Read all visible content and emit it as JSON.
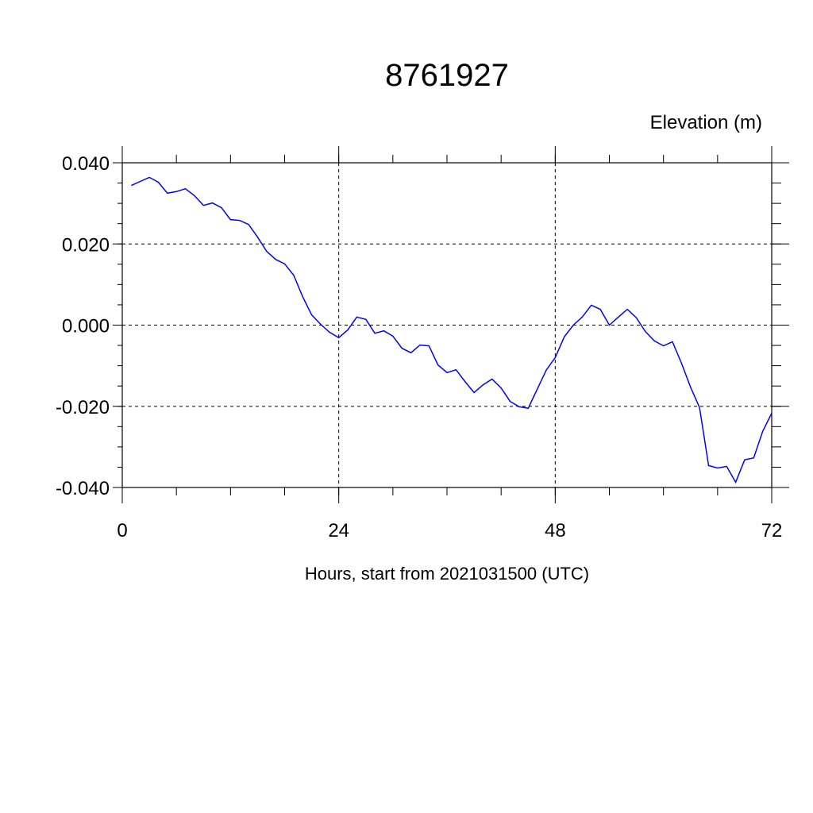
{
  "chart_data": {
    "type": "line",
    "title": "8761927",
    "ylabel": "Elevation (m)",
    "xlabel": "Hours, start from 2021031500 (UTC)",
    "xlim": [
      0,
      72
    ],
    "ylim": [
      -0.04,
      0.04
    ],
    "xticks": [
      0,
      24,
      48,
      72
    ],
    "xtick_labels": [
      "0",
      "24",
      "48",
      "72"
    ],
    "yticks": [
      0.04,
      0.02,
      0.0,
      -0.02,
      -0.04
    ],
    "ytick_labels": [
      "0.040",
      "0.020",
      "0.000",
      "-0.020",
      "-0.040"
    ],
    "grid": true,
    "line_color": "#0000ff",
    "series": [
      {
        "name": "Elevation",
        "x": [
          1,
          2,
          3,
          4,
          5,
          6,
          7,
          8,
          9,
          10,
          11,
          12,
          13,
          14,
          15,
          16,
          17,
          18,
          19,
          20,
          21,
          22,
          23,
          24,
          25,
          26,
          27,
          28,
          29,
          30,
          31,
          32,
          33,
          34,
          35,
          36,
          37,
          38,
          39,
          40,
          41,
          42,
          43,
          44,
          45,
          46,
          47,
          48,
          49,
          50,
          51,
          52,
          53,
          54,
          55,
          56,
          57,
          58,
          59,
          60,
          61,
          62,
          63,
          64,
          65,
          66,
          67,
          68,
          69,
          70,
          71,
          72
        ],
        "values": [
          0.0344,
          0.0354,
          0.0364,
          0.0352,
          0.0325,
          0.0329,
          0.0336,
          0.0319,
          0.0295,
          0.0301,
          0.0289,
          0.026,
          0.0258,
          0.0248,
          0.0217,
          0.0182,
          0.0162,
          0.0151,
          0.0123,
          0.007,
          0.0025,
          0.0002,
          -0.0018,
          -0.0031,
          -0.0012,
          0.002,
          0.0014,
          -0.002,
          -0.0014,
          -0.0027,
          -0.0057,
          -0.0068,
          -0.0049,
          -0.0051,
          -0.0098,
          -0.0117,
          -0.011,
          -0.0139,
          -0.0166,
          -0.0147,
          -0.0133,
          -0.0155,
          -0.0188,
          -0.0201,
          -0.0205,
          -0.0158,
          -0.0111,
          -0.008,
          -0.0029,
          0.0,
          0.002,
          0.0049,
          0.0039,
          0.0,
          0.002,
          0.0039,
          0.0018,
          -0.0016,
          -0.0039,
          -0.0051,
          -0.0041,
          -0.0094,
          -0.0153,
          -0.0203,
          -0.0346,
          -0.0352,
          -0.0348,
          -0.0387,
          -0.0332,
          -0.0327,
          -0.0262,
          -0.0217
        ]
      }
    ]
  }
}
